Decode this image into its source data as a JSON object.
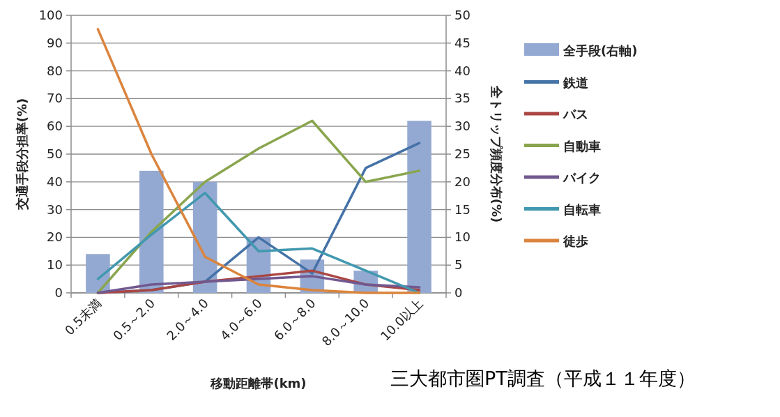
{
  "chart_data": {
    "type": "line",
    "xlabel": "移動距離帯(km)",
    "ylabel": "交通手段分担率(%)",
    "y2label": "全トリップ頻度分布(%)",
    "categories": [
      "0.5未満",
      "0.5～2.0",
      "2.0～4.0",
      "4.0～6.0",
      "6.0～8.0",
      "8.0～10.0",
      "10.0以上"
    ],
    "series": [
      {
        "name": "全手段(右軸)",
        "type": "bar",
        "axis": "y2",
        "color": "#94a9d2",
        "values": [
          7,
          22,
          20,
          10,
          6,
          4,
          31
        ]
      },
      {
        "name": "鉄道",
        "color": "#4572a7",
        "values": [
          0,
          1,
          4,
          20,
          7,
          45,
          54
        ]
      },
      {
        "name": "バス",
        "color": "#aa4643",
        "values": [
          0,
          1,
          4,
          6,
          8,
          3,
          1
        ]
      },
      {
        "name": "自動車",
        "color": "#89a54e",
        "values": [
          0,
          22,
          40,
          52,
          62,
          40,
          44
        ]
      },
      {
        "name": "バイク",
        "color": "#71588f",
        "values": [
          0,
          3,
          4,
          5,
          6,
          3,
          2
        ]
      },
      {
        "name": "自転車",
        "color": "#4198af",
        "values": [
          5,
          21,
          36,
          15,
          16,
          8,
          0
        ]
      },
      {
        "name": "徒歩",
        "color": "#db843d",
        "values": [
          95,
          50,
          13,
          3,
          1,
          0,
          0
        ]
      }
    ],
    "ylim": [
      0,
      100
    ],
    "yticks": [
      0,
      10,
      20,
      30,
      40,
      50,
      60,
      70,
      80,
      90,
      100
    ],
    "y2lim": [
      0,
      50
    ],
    "y2ticks": [
      0,
      5,
      10,
      15,
      20,
      25,
      30,
      35,
      40,
      45,
      50
    ],
    "grid": "y",
    "legend": "right",
    "marker": "none",
    "annotations": [
      "三大都市圏PT調査（平成１１年度）"
    ]
  }
}
